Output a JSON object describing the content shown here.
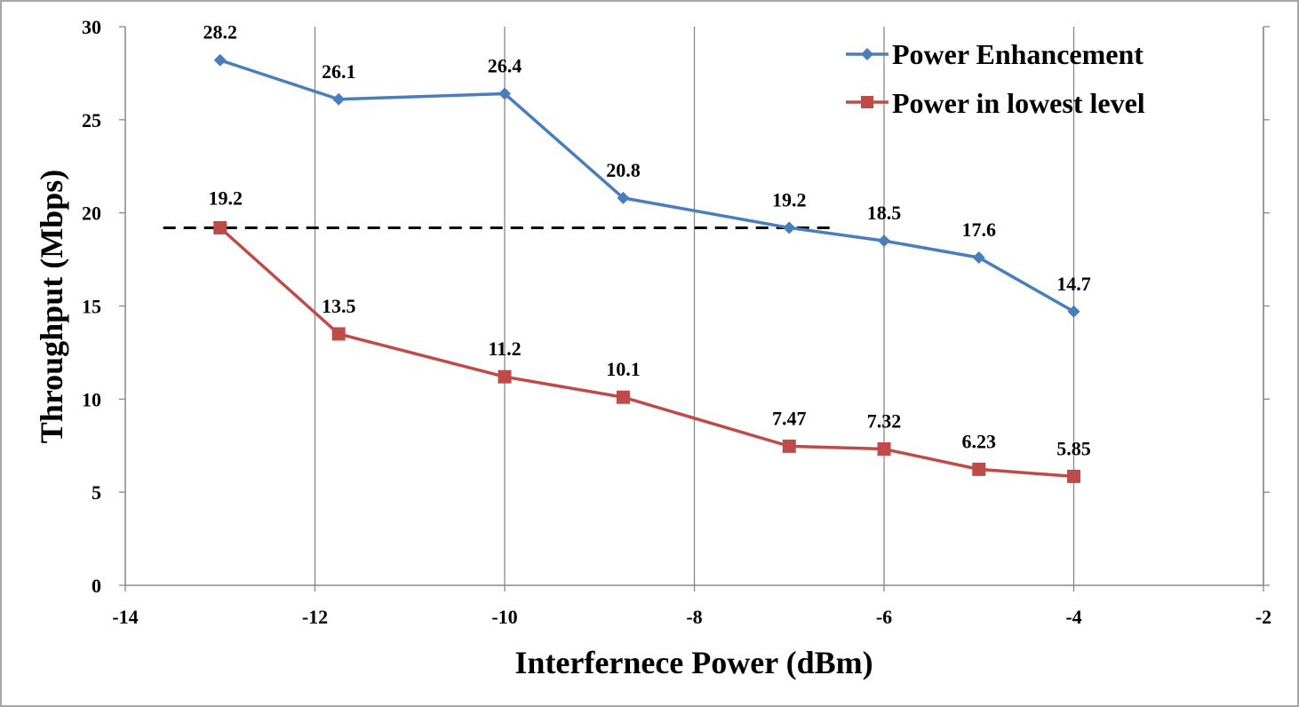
{
  "chart_data": {
    "type": "line",
    "xlabel": "Interfernece Power (dBm)",
    "ylabel": "Throughput (Mbps)",
    "xlim": [
      -14,
      -2
    ],
    "ylim": [
      0,
      30
    ],
    "xticks": [
      "-14",
      "-12",
      "-10",
      "-8",
      "-6",
      "-4",
      "-2"
    ],
    "yticks": [
      "0",
      "5",
      "10",
      "15",
      "20",
      "25",
      "30"
    ],
    "grid": "vertical",
    "legend": "top-right",
    "series": [
      {
        "name": "Power Enhancement",
        "color": "#4a7ebb",
        "marker": "diamond",
        "x": [
          -13,
          -11.75,
          -10,
          -8.75,
          -7,
          -6,
          -5,
          -4
        ],
        "values": [
          28.2,
          26.1,
          26.4,
          20.8,
          19.2,
          18.5,
          17.6,
          14.7
        ],
        "labels": [
          "28.2",
          "26.1",
          "26.4",
          "20.8",
          "19.2",
          "18.5",
          "17.6",
          "14.7"
        ]
      },
      {
        "name": "Power in lowest level",
        "color": "#be4b48",
        "marker": "square",
        "x": [
          -13,
          -11.75,
          -10,
          -8.75,
          -7,
          -6,
          -5,
          -4
        ],
        "values": [
          19.2,
          13.5,
          11.2,
          10.1,
          7.47,
          7.32,
          6.23,
          5.85
        ],
        "labels": [
          "19.2",
          "13.5",
          "11.2",
          "10.1",
          "7.47",
          "7.32",
          "6.23",
          "5.85"
        ]
      }
    ],
    "reference_line": {
      "style": "dashed",
      "color": "#000000",
      "y": 19.2,
      "x_from": -13.6,
      "x_to": -6.5
    }
  }
}
